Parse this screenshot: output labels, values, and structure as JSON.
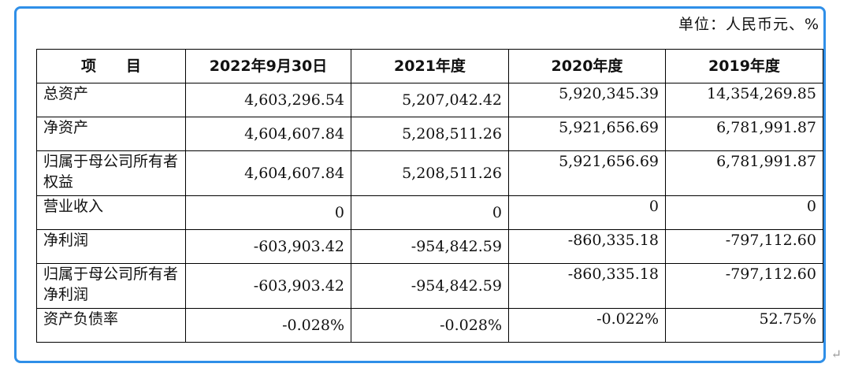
{
  "unit_label": "单位：人民币元、%",
  "headers": [
    "项　　目",
    "2022年9月30日",
    "2021年度",
    "2020年度",
    "2019年度"
  ],
  "rows": [
    {
      "item": "总资产",
      "values": [
        "4,603,296.54",
        "5,207,042.42",
        "5,920,345.39",
        "14,354,269.85"
      ]
    },
    {
      "item": "净资产",
      "values": [
        "4,604,607.84",
        "5,208,511.26",
        "5,921,656.69",
        "6,781,991.87"
      ]
    },
    {
      "item": "归属于母公司所有者权益",
      "values": [
        "4,604,607.84",
        "5,208,511.26",
        "5,921,656.69",
        "6,781,991.87"
      ]
    },
    {
      "item": "营业收入",
      "values": [
        "0",
        "0",
        "0",
        "0"
      ]
    },
    {
      "item": "净利润",
      "values": [
        "-603,903.42",
        "-954,842.59",
        "-860,335.18",
        "-797,112.60"
      ]
    },
    {
      "item": "归属于母公司所有者净利润",
      "values": [
        "-603,903.42",
        "-954,842.59",
        "-860,335.18",
        "-797,112.60"
      ]
    },
    {
      "item": "资产负债率",
      "values": [
        "-0.028%",
        "-0.028%",
        "-0.022%",
        "52.75%"
      ]
    }
  ],
  "colors": {
    "frame_border": "#2f8fe8"
  },
  "return_mark": "↵"
}
